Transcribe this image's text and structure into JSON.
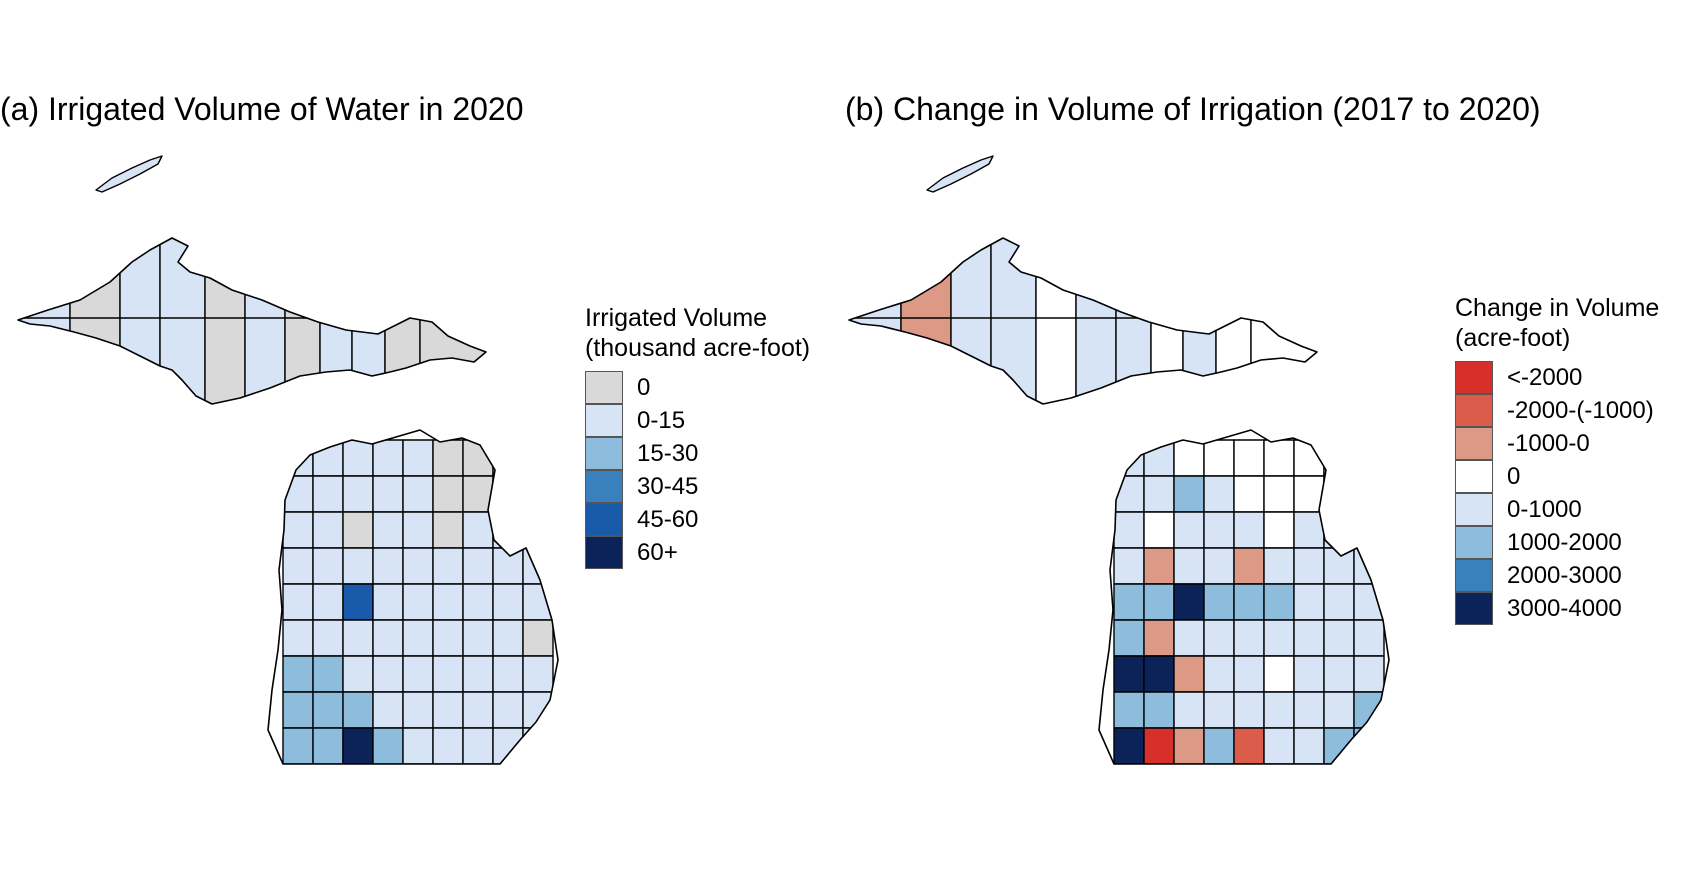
{
  "panels": [
    {
      "title": "(a) Irrigated Volume of Water in 2020",
      "legend": {
        "title_line1": "Irrigated Volume",
        "title_line2": "(thousand acre-foot)",
        "items": [
          {
            "label": "0",
            "color": "#d9d9d9"
          },
          {
            "label": "0-15",
            "color": "#d6e4f5"
          },
          {
            "label": "15-30",
            "color": "#8dbcdc"
          },
          {
            "label": "30-45",
            "color": "#3a80bd"
          },
          {
            "label": "45-60",
            "color": "#1a5aab"
          },
          {
            "label": "60+",
            "color": "#0b2358"
          }
        ]
      }
    },
    {
      "title": "(b) Change in Volume of Irrigation (2017 to 2020)",
      "legend": {
        "title_line1": "Change in Volume",
        "title_line2": "(acre-foot)",
        "items": [
          {
            "label": "<-2000",
            "color": "#d7302a"
          },
          {
            "label": "-2000-(-1000)",
            "color": "#db5c4b"
          },
          {
            "label": "-1000-0",
            "color": "#dc9985"
          },
          {
            "label": "0",
            "color": "#ffffff"
          },
          {
            "label": "0-1000",
            "color": "#d6e4f5"
          },
          {
            "label": "1000-2000",
            "color": "#8dbcdc"
          },
          {
            "label": "2000-3000",
            "color": "#3a80bd"
          },
          {
            "label": "3000-4000",
            "color": "#0b2358"
          }
        ]
      }
    }
  ],
  "map_a_classes": {
    "grid": [
      [
        "1",
        "1",
        "1",
        "1",
        "1",
        "0",
        "0",
        "0",
        "1"
      ],
      [
        "1",
        "1",
        "1",
        "1",
        "1",
        "0",
        "0",
        "0",
        "1"
      ],
      [
        "1",
        "1",
        "0",
        "1",
        "1",
        "0",
        "1",
        "1",
        "1"
      ],
      [
        "1",
        "1",
        "1",
        "1",
        "1",
        "1",
        "1",
        "1",
        "1"
      ],
      [
        "1",
        "1",
        "4",
        "1",
        "1",
        "1",
        "1",
        "1",
        "1"
      ],
      [
        "1",
        "1",
        "1",
        "1",
        "1",
        "1",
        "1",
        "1",
        "0"
      ],
      [
        "2",
        "2",
        "1",
        "1",
        "1",
        "1",
        "1",
        "1",
        "1"
      ],
      [
        "2",
        "2",
        "2",
        "1",
        "1",
        "1",
        "1",
        "1",
        "1"
      ],
      [
        "2",
        "2",
        "5",
        "2",
        "1",
        "1",
        "1",
        "1",
        "1"
      ]
    ],
    "up": [
      "1",
      "0",
      "1",
      "1",
      "0",
      "1",
      "0",
      "1",
      "1",
      "0",
      "0"
    ]
  },
  "map_b_classes": {
    "grid": [
      [
        "4",
        "4",
        "3",
        "3",
        "3",
        "3",
        "3",
        "3",
        "4"
      ],
      [
        "4",
        "4",
        "5",
        "4",
        "3",
        "3",
        "3",
        "3",
        "4"
      ],
      [
        "4",
        "3",
        "4",
        "4",
        "4",
        "3",
        "4",
        "4",
        "4"
      ],
      [
        "4",
        "2",
        "4",
        "4",
        "2",
        "4",
        "4",
        "4",
        "4"
      ],
      [
        "5",
        "5",
        "7",
        "5",
        "5",
        "5",
        "4",
        "4",
        "4"
      ],
      [
        "5",
        "2",
        "4",
        "4",
        "4",
        "4",
        "4",
        "4",
        "4"
      ],
      [
        "7",
        "7",
        "2",
        "4",
        "4",
        "3",
        "4",
        "4",
        "4"
      ],
      [
        "5",
        "5",
        "4",
        "4",
        "4",
        "4",
        "4",
        "4",
        "5"
      ],
      [
        "7",
        "0",
        "2",
        "5",
        "1",
        "4",
        "4",
        "5",
        "5"
      ]
    ],
    "up": [
      "4",
      "2",
      "4",
      "4",
      "3",
      "4",
      "4",
      "3",
      "4",
      "3",
      "3"
    ]
  }
}
